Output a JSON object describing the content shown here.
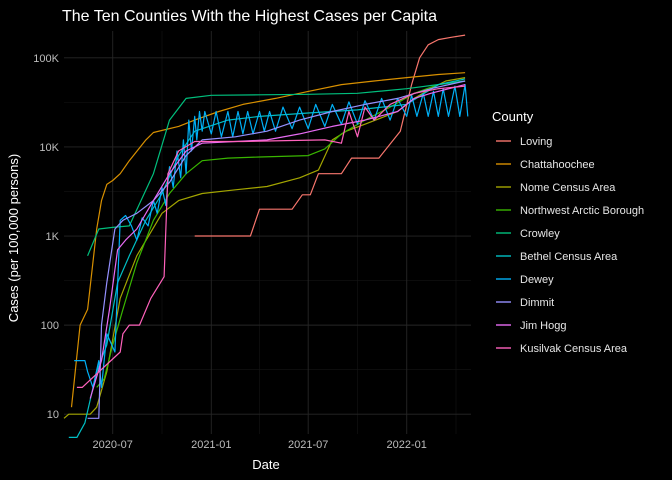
{
  "chart_data": {
    "type": "line",
    "title": "The Ten Counties With the Highest Cases per Capita",
    "xlabel": "Date",
    "ylabel": "Cases (per 100,000 persons)",
    "x_scale": "date",
    "y_scale": "log10",
    "xlim": [
      "2020-04-01",
      "2022-05-01"
    ],
    "ylim": [
      6,
      200000
    ],
    "x_ticks": [
      {
        "date": "2020-07-01",
        "label": "2020-07"
      },
      {
        "date": "2021-01-01",
        "label": "2021-01"
      },
      {
        "date": "2021-07-01",
        "label": "2021-07"
      },
      {
        "date": "2022-01-01",
        "label": "2022-01"
      }
    ],
    "y_ticks": [
      {
        "value": 10,
        "label": "10"
      },
      {
        "value": 100,
        "label": "100"
      },
      {
        "value": 1000,
        "label": "1K"
      },
      {
        "value": 10000,
        "label": "10K"
      },
      {
        "value": 100000,
        "label": "100K"
      }
    ],
    "grid": true,
    "legend": {
      "title": "County",
      "position": "right"
    },
    "series": [
      {
        "name": "Loving",
        "color": "#F8766D",
        "points": [
          [
            "2020-12-01",
            1000
          ],
          [
            "2021-02-15",
            1000
          ],
          [
            "2021-03-15",
            1000
          ],
          [
            "2021-04-01",
            2000
          ],
          [
            "2021-05-01",
            2000
          ],
          [
            "2021-06-01",
            2000
          ],
          [
            "2021-06-20",
            2900
          ],
          [
            "2021-07-05",
            2900
          ],
          [
            "2021-07-20",
            5000
          ],
          [
            "2021-09-01",
            5000
          ],
          [
            "2021-09-20",
            7500
          ],
          [
            "2021-11-10",
            7500
          ],
          [
            "2021-12-20",
            15000
          ],
          [
            "2022-01-10",
            50000
          ],
          [
            "2022-01-25",
            100000
          ],
          [
            "2022-02-10",
            140000
          ],
          [
            "2022-03-01",
            160000
          ],
          [
            "2022-03-25",
            170000
          ],
          [
            "2022-04-20",
            180000
          ]
        ]
      },
      {
        "name": "Chattahoochee",
        "color": "#D89000",
        "points": [
          [
            "2020-04-15",
            12
          ],
          [
            "2020-05-01",
            100
          ],
          [
            "2020-05-15",
            150
          ],
          [
            "2020-06-01",
            1200
          ],
          [
            "2020-06-10",
            2500
          ],
          [
            "2020-06-20",
            3800
          ],
          [
            "2020-07-01",
            4200
          ],
          [
            "2020-07-15",
            5000
          ],
          [
            "2020-08-01",
            7000
          ],
          [
            "2020-09-01",
            12000
          ],
          [
            "2020-09-15",
            14500
          ],
          [
            "2020-11-01",
            17000
          ],
          [
            "2020-12-01",
            20000
          ],
          [
            "2021-01-15",
            25000
          ],
          [
            "2021-03-01",
            30000
          ],
          [
            "2021-05-01",
            35000
          ],
          [
            "2021-07-01",
            42000
          ],
          [
            "2021-09-01",
            50000
          ],
          [
            "2021-11-01",
            55000
          ],
          [
            "2022-01-01",
            60000
          ],
          [
            "2022-03-01",
            65000
          ],
          [
            "2022-04-20",
            68000
          ]
        ]
      },
      {
        "name": "Nome Census Area",
        "color": "#A3A500",
        "points": [
          [
            "2020-04-01",
            9
          ],
          [
            "2020-04-10",
            10
          ],
          [
            "2020-05-20",
            10
          ],
          [
            "2020-06-01",
            12
          ],
          [
            "2020-06-20",
            30
          ],
          [
            "2020-07-15",
            200
          ],
          [
            "2020-08-15",
            600
          ],
          [
            "2020-10-01",
            1800
          ],
          [
            "2020-11-01",
            2500
          ],
          [
            "2020-12-15",
            3000
          ],
          [
            "2021-02-15",
            3300
          ],
          [
            "2021-04-15",
            3600
          ],
          [
            "2021-06-15",
            4500
          ],
          [
            "2021-07-20",
            5500
          ],
          [
            "2021-08-15",
            12000
          ],
          [
            "2021-09-10",
            15000
          ],
          [
            "2021-10-15",
            18000
          ],
          [
            "2021-12-15",
            25000
          ],
          [
            "2022-01-15",
            35000
          ],
          [
            "2022-02-15",
            45000
          ],
          [
            "2022-03-15",
            55000
          ],
          [
            "2022-04-20",
            60000
          ]
        ]
      },
      {
        "name": "Northwest Arctic Borough",
        "color": "#39B600",
        "points": [
          [
            "2020-06-01",
            20
          ],
          [
            "2020-06-15",
            25
          ],
          [
            "2020-07-01",
            60
          ],
          [
            "2020-07-20",
            150
          ],
          [
            "2020-08-15",
            500
          ],
          [
            "2020-09-15",
            1500
          ],
          [
            "2020-10-15",
            3000
          ],
          [
            "2020-11-15",
            5000
          ],
          [
            "2020-12-15",
            7000
          ],
          [
            "2021-02-01",
            7500
          ],
          [
            "2021-04-01",
            7700
          ],
          [
            "2021-07-01",
            8000
          ],
          [
            "2021-08-01",
            9500
          ],
          [
            "2021-09-01",
            14000
          ],
          [
            "2021-10-15",
            20000
          ],
          [
            "2021-12-01",
            28000
          ],
          [
            "2022-01-15",
            40000
          ],
          [
            "2022-03-01",
            50000
          ],
          [
            "2022-04-20",
            55000
          ]
        ]
      },
      {
        "name": "Crowley",
        "color": "#00BF7D",
        "points": [
          [
            "2020-05-15",
            600
          ],
          [
            "2020-06-05",
            1200
          ],
          [
            "2020-07-01",
            1250
          ],
          [
            "2020-08-01",
            1300
          ],
          [
            "2020-09-15",
            5000
          ],
          [
            "2020-10-15",
            20000
          ],
          [
            "2020-11-15",
            35000
          ],
          [
            "2021-01-01",
            38000
          ],
          [
            "2021-04-01",
            38500
          ],
          [
            "2021-07-01",
            39000
          ],
          [
            "2021-10-01",
            40000
          ],
          [
            "2022-01-01",
            45000
          ],
          [
            "2022-04-20",
            55000
          ]
        ]
      },
      {
        "name": "Bethel Census Area",
        "color": "#00BFC4",
        "points": [
          [
            "2020-04-10",
            5.5
          ],
          [
            "2020-04-25",
            5.5
          ],
          [
            "2020-05-10",
            8
          ],
          [
            "2020-06-01",
            30
          ],
          [
            "2020-06-20",
            60
          ],
          [
            "2020-07-10",
            300
          ],
          [
            "2020-08-01",
            600
          ],
          [
            "2020-09-01",
            1500
          ],
          [
            "2020-10-01",
            3000
          ],
          [
            "2020-11-01",
            8000
          ],
          [
            "2020-12-01",
            15000
          ],
          [
            "2021-02-01",
            20000
          ],
          [
            "2021-04-01",
            22000
          ],
          [
            "2021-07-01",
            24000
          ],
          [
            "2021-10-01",
            26000
          ],
          [
            "2022-01-01",
            30000
          ],
          [
            "2022-03-01",
            50000
          ],
          [
            "2022-04-20",
            58000
          ]
        ]
      },
      {
        "name": "Dewey",
        "color": "#00B0F6",
        "points": [
          [
            "2020-04-20",
            40
          ],
          [
            "2020-05-10",
            40
          ],
          [
            "2020-05-15",
            30
          ],
          [
            "2020-05-25",
            20
          ],
          [
            "2020-06-05",
            40
          ],
          [
            "2020-06-10",
            20
          ],
          [
            "2020-06-20",
            80
          ],
          [
            "2020-07-05",
            50
          ],
          [
            "2020-07-15",
            1500
          ],
          [
            "2020-07-25",
            1700
          ],
          [
            "2020-08-05",
            1300
          ],
          [
            "2020-08-15",
            900
          ],
          [
            "2020-08-25",
            1600
          ],
          [
            "2020-09-05",
            1300
          ],
          [
            "2020-09-15",
            2500
          ],
          [
            "2020-09-22",
            1800
          ],
          [
            "2020-10-01",
            3500
          ],
          [
            "2020-10-08",
            2200
          ],
          [
            "2020-10-15",
            6000
          ],
          [
            "2020-10-22",
            3500
          ],
          [
            "2020-10-29",
            9000
          ],
          [
            "2020-11-05",
            4500
          ],
          [
            "2020-11-10",
            12000
          ],
          [
            "2020-11-15",
            5000
          ],
          [
            "2020-11-20",
            20000
          ],
          [
            "2020-11-25",
            9000
          ],
          [
            "2020-12-01",
            22000
          ],
          [
            "2020-12-05",
            12000
          ],
          [
            "2020-12-10",
            25000
          ],
          [
            "2020-12-15",
            15000
          ],
          [
            "2020-12-20",
            25000
          ],
          [
            "2021-01-01",
            14000
          ],
          [
            "2021-01-10",
            25000
          ],
          [
            "2021-01-20",
            13000
          ],
          [
            "2021-02-01",
            25000
          ],
          [
            "2021-02-10",
            13000
          ],
          [
            "2021-02-20",
            25000
          ],
          [
            "2021-03-01",
            14000
          ],
          [
            "2021-03-10",
            25000
          ],
          [
            "2021-03-20",
            14000
          ],
          [
            "2021-04-01",
            25000
          ],
          [
            "2021-04-10",
            15000
          ],
          [
            "2021-04-20",
            25000
          ],
          [
            "2021-05-01",
            15000
          ],
          [
            "2021-05-15",
            28000
          ],
          [
            "2021-06-01",
            16000
          ],
          [
            "2021-06-15",
            28000
          ],
          [
            "2021-07-01",
            16000
          ],
          [
            "2021-07-15",
            30000
          ],
          [
            "2021-08-01",
            17000
          ],
          [
            "2021-08-15",
            30000
          ],
          [
            "2021-09-01",
            18000
          ],
          [
            "2021-09-15",
            32000
          ],
          [
            "2021-10-01",
            18000
          ],
          [
            "2021-10-15",
            33000
          ],
          [
            "2021-11-01",
            20000
          ],
          [
            "2021-11-15",
            35000
          ],
          [
            "2021-12-01",
            20000
          ],
          [
            "2021-12-15",
            35000
          ],
          [
            "2022-01-01",
            22000
          ],
          [
            "2022-01-10",
            38000
          ],
          [
            "2022-01-20",
            22000
          ],
          [
            "2022-02-01",
            40000
          ],
          [
            "2022-02-10",
            22000
          ],
          [
            "2022-02-20",
            42000
          ],
          [
            "2022-03-01",
            22000
          ],
          [
            "2022-03-10",
            45000
          ],
          [
            "2022-03-20",
            22000
          ],
          [
            "2022-04-01",
            48000
          ],
          [
            "2022-04-10",
            22000
          ],
          [
            "2022-04-20",
            50000
          ],
          [
            "2022-04-25",
            22000
          ]
        ]
      },
      {
        "name": "Dimmit",
        "color": "#9590FF",
        "points": [
          [
            "2020-05-15",
            9
          ],
          [
            "2020-05-25",
            9
          ],
          [
            "2020-06-05",
            9
          ],
          [
            "2020-06-10",
            100
          ],
          [
            "2020-06-20",
            300
          ],
          [
            "2020-07-05",
            1200
          ],
          [
            "2020-07-20",
            1500
          ],
          [
            "2020-08-15",
            1800
          ],
          [
            "2020-09-15",
            2500
          ],
          [
            "2020-10-15",
            4000
          ],
          [
            "2020-11-15",
            8000
          ],
          [
            "2020-12-15",
            12000
          ],
          [
            "2021-02-15",
            13000
          ],
          [
            "2021-04-15",
            15000
          ],
          [
            "2021-06-15",
            20000
          ],
          [
            "2021-08-15",
            25000
          ],
          [
            "2021-10-15",
            30000
          ],
          [
            "2021-12-15",
            35000
          ],
          [
            "2022-02-15",
            45000
          ],
          [
            "2022-04-20",
            55000
          ]
        ]
      },
      {
        "name": "Jim Hogg",
        "color": "#E76BF3",
        "points": [
          [
            "2020-05-20",
            15
          ],
          [
            "2020-06-10",
            40
          ],
          [
            "2020-06-25",
            150
          ],
          [
            "2020-07-10",
            700
          ],
          [
            "2020-07-25",
            900
          ],
          [
            "2020-08-15",
            1200
          ],
          [
            "2020-09-15",
            2500
          ],
          [
            "2020-10-15",
            5000
          ],
          [
            "2020-11-15",
            9000
          ],
          [
            "2020-12-15",
            11000
          ],
          [
            "2021-02-15",
            11500
          ],
          [
            "2021-04-15",
            12000
          ],
          [
            "2021-06-15",
            14000
          ],
          [
            "2021-08-15",
            17000
          ],
          [
            "2021-10-15",
            20000
          ],
          [
            "2021-12-15",
            25000
          ],
          [
            "2022-01-15",
            35000
          ],
          [
            "2022-02-15",
            40000
          ],
          [
            "2022-04-20",
            50000
          ]
        ]
      },
      {
        "name": "Kusilvak Census Area",
        "color": "#FF62BC",
        "points": [
          [
            "2020-04-25",
            20
          ],
          [
            "2020-05-05",
            20
          ],
          [
            "2020-07-15",
            50
          ],
          [
            "2020-07-20",
            80
          ],
          [
            "2020-08-01",
            100
          ],
          [
            "2020-08-20",
            100
          ],
          [
            "2020-09-10",
            200
          ],
          [
            "2020-10-05",
            350
          ],
          [
            "2020-10-12",
            5000
          ],
          [
            "2020-11-01",
            9000
          ],
          [
            "2020-12-01",
            11500
          ],
          [
            "2021-03-01",
            11500
          ],
          [
            "2021-06-01",
            11800
          ],
          [
            "2021-08-01",
            12000
          ],
          [
            "2021-09-01",
            11000
          ],
          [
            "2021-09-15",
            25000
          ],
          [
            "2021-10-01",
            13000
          ],
          [
            "2021-10-15",
            28000
          ],
          [
            "2021-11-01",
            20000
          ],
          [
            "2021-12-01",
            30000
          ],
          [
            "2022-01-15",
            40000
          ],
          [
            "2022-03-01",
            45000
          ],
          [
            "2022-04-20",
            48000
          ]
        ]
      }
    ]
  }
}
